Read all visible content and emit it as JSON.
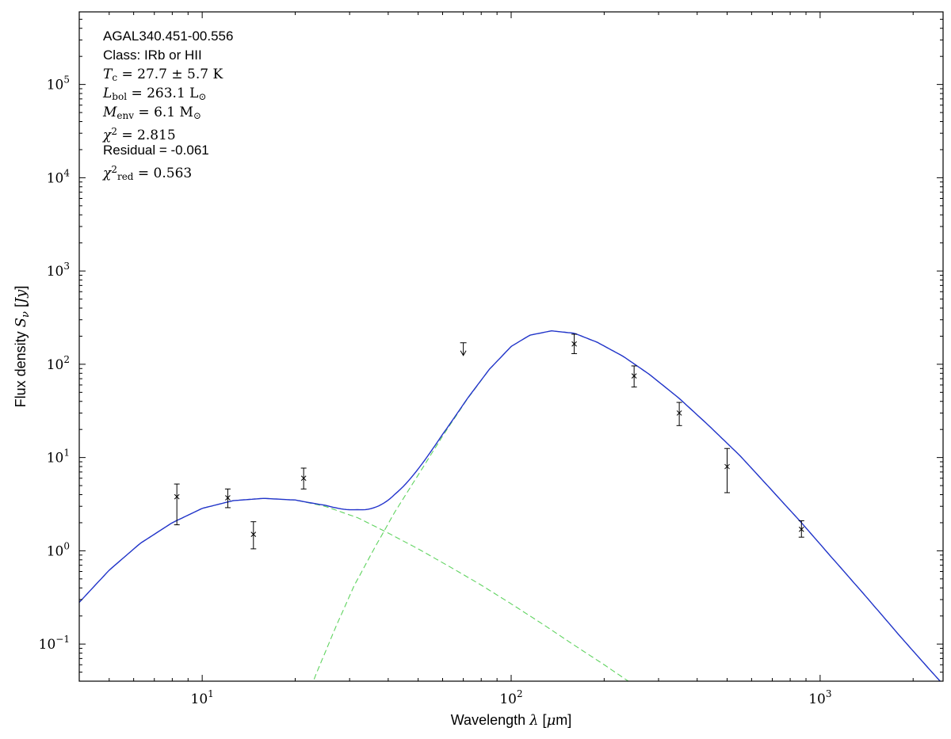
{
  "figure": {
    "background": "#ffffff",
    "frame_color": "#000000",
    "tick_color": "#000000",
    "text_color": "#000000"
  },
  "chart_data": {
    "type": "line",
    "title": "",
    "xscale": "log",
    "yscale": "log",
    "xlim": [
      4,
      2500
    ],
    "ylim": [
      0.04,
      600000
    ],
    "grid": false,
    "legend": "none",
    "x_major_tick_exponents": [
      1,
      2,
      3
    ],
    "y_major_tick_exponents": [
      -1,
      0,
      1,
      2,
      3,
      4,
      5
    ],
    "xlabel_runs": [
      {
        "text": "Wavelength ",
        "style": "sans"
      },
      {
        "text": "λ",
        "style": "it"
      },
      {
        "text": " [",
        "style": "sans"
      },
      {
        "text": "μ",
        "style": "it"
      },
      {
        "text": "m]",
        "style": "sans"
      }
    ],
    "ylabel_runs": [
      {
        "text": "Flux density ",
        "style": "sans"
      },
      {
        "text": "S",
        "style": "it"
      },
      {
        "text": "ν",
        "style": "subit"
      },
      {
        "text": " [",
        "style": "sans"
      },
      {
        "text": "Jy",
        "style": "it"
      },
      {
        "text": "]",
        "style": "sans"
      }
    ],
    "series": [
      {
        "name": "warm-component",
        "role": "model-component",
        "color": "#5fd35f",
        "style": "dashed",
        "width": 1.1,
        "x": [
          4,
          5,
          6.3,
          8,
          10,
          12.6,
          15.8,
          20,
          25,
          32,
          40,
          50,
          63,
          79,
          100,
          126,
          158,
          200,
          251,
          316,
          400
        ],
        "y": [
          0.28,
          0.62,
          1.2,
          2.0,
          2.85,
          3.45,
          3.65,
          3.5,
          3.0,
          2.25,
          1.55,
          1.05,
          0.68,
          0.44,
          0.27,
          0.165,
          0.1,
          0.06,
          0.036,
          0.021,
          0.012
        ]
      },
      {
        "name": "cold-component",
        "role": "model-component",
        "color": "#5fd35f",
        "style": "dashed",
        "width": 1.1,
        "x": [
          20,
          23,
          27,
          31,
          36,
          42,
          50,
          60,
          72,
          85,
          100,
          115,
          135,
          160,
          190,
          230,
          280,
          350,
          430,
          550,
          700,
          870,
          1100,
          1400,
          1800,
          2300,
          2500
        ],
        "y": [
          0.01,
          0.042,
          0.15,
          0.42,
          1.05,
          2.6,
          6.5,
          17,
          42,
          88,
          155,
          205,
          228,
          215,
          172,
          122,
          78,
          43,
          23,
          10.5,
          4.4,
          2.0,
          0.82,
          0.33,
          0.125,
          0.05,
          0.037
        ]
      },
      {
        "name": "total-model",
        "role": "model-total",
        "color": "#2233cc",
        "style": "solid",
        "width": 1.4,
        "sum_of": [
          "warm-component",
          "cold-component"
        ]
      }
    ],
    "data_points": [
      {
        "wavelength_um": 8.28,
        "flux_jy": 3.8,
        "err_lo": 1.9,
        "err_hi": 5.2,
        "type": "detection"
      },
      {
        "wavelength_um": 12.1,
        "flux_jy": 3.7,
        "err_lo": 2.9,
        "err_hi": 4.6,
        "type": "detection"
      },
      {
        "wavelength_um": 14.65,
        "flux_jy": 1.5,
        "err_lo": 1.05,
        "err_hi": 2.05,
        "type": "detection"
      },
      {
        "wavelength_um": 21.3,
        "flux_jy": 6.0,
        "err_lo": 4.6,
        "err_hi": 7.7,
        "type": "detection"
      },
      {
        "wavelength_um": 70,
        "flux_jy": 170,
        "type": "upper_limit"
      },
      {
        "wavelength_um": 160,
        "flux_jy": 165,
        "err_lo": 130,
        "err_hi": 210,
        "type": "detection"
      },
      {
        "wavelength_um": 250,
        "flux_jy": 75,
        "err_lo": 57,
        "err_hi": 96,
        "type": "detection"
      },
      {
        "wavelength_um": 350,
        "flux_jy": 30,
        "err_lo": 22,
        "err_hi": 39,
        "type": "detection"
      },
      {
        "wavelength_um": 500,
        "flux_jy": 8.0,
        "err_lo": 4.2,
        "err_hi": 12.5,
        "type": "detection"
      },
      {
        "wavelength_um": 870,
        "flux_jy": 1.7,
        "err_lo": 1.4,
        "err_hi": 2.1,
        "type": "detection"
      }
    ],
    "marker": {
      "shape": "x",
      "color": "#000000"
    },
    "annotation_lines": [
      {
        "runs": [
          {
            "text": "AGAL340.451-00.556",
            "style": "sans"
          }
        ]
      },
      {
        "runs": [
          {
            "text": "Class: IRb or HII",
            "style": "sans"
          }
        ]
      },
      {
        "runs": [
          {
            "text": "T",
            "style": "it"
          },
          {
            "text": "c",
            "style": "sub"
          },
          {
            "text": " = 27.7 ± 5.7 K",
            "style": "rm"
          }
        ]
      },
      {
        "runs": [
          {
            "text": "L",
            "style": "it"
          },
          {
            "text": "bol",
            "style": "sub"
          },
          {
            "text": " = 263.1 L",
            "style": "rm"
          },
          {
            "text": "⊙",
            "style": "sub"
          }
        ]
      },
      {
        "runs": [
          {
            "text": "M",
            "style": "it"
          },
          {
            "text": "env",
            "style": "sub"
          },
          {
            "text": " = 6.1 M",
            "style": "rm"
          },
          {
            "text": "⊙",
            "style": "sub"
          }
        ]
      },
      {
        "runs": [
          {
            "text": "χ",
            "style": "it"
          },
          {
            "text": "2",
            "style": "sup"
          },
          {
            "text": " = 2.815",
            "style": "rm"
          }
        ]
      },
      {
        "runs": [
          {
            "text": "Residual = -0.061",
            "style": "sans"
          }
        ]
      },
      {
        "runs": [
          {
            "text": "χ",
            "style": "it"
          },
          {
            "text": "2",
            "style": "sup"
          },
          {
            "text": "red",
            "style": "sub"
          },
          {
            "text": " = 0.563",
            "style": "rm"
          }
        ]
      }
    ]
  }
}
